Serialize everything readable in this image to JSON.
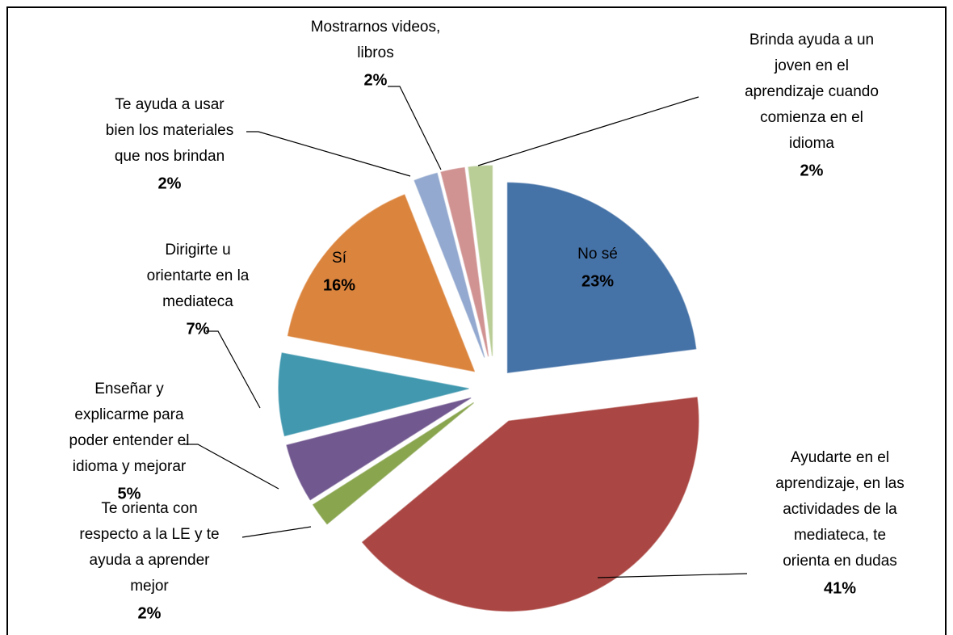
{
  "chart_data": {
    "type": "pie",
    "categories": [
      [
        "No sé"
      ],
      [
        "Ayudarte en el",
        "aprendizaje, en las",
        "actividades de la",
        "mediateca, te",
        "orienta en dudas"
      ],
      [
        "Te orienta con",
        "respecto a la LE y te",
        "ayuda a aprender",
        "mejor"
      ],
      [
        "Enseñar y",
        "explicarme para",
        "poder entender el",
        "idioma y mejorar"
      ],
      [
        "Dirigirte u",
        "orientarte en la",
        "mediateca"
      ],
      [
        "Sí"
      ],
      [
        "Te ayuda a usar",
        "bien los materiales",
        "que nos brindan"
      ],
      [
        "Mostrarnos  videos,",
        "libros"
      ],
      [
        "Brinda ayuda a un",
        "joven en el",
        "aprendizaje cuando",
        "comienza en el",
        "idioma"
      ]
    ],
    "values": [
      23,
      41,
      2,
      5,
      7,
      16,
      2,
      2,
      2
    ],
    "value_labels": [
      "23%",
      "41%",
      "2%",
      "5%",
      "7%",
      "16%",
      "2%",
      "2%",
      "2%"
    ],
    "colors": [
      "#4572a7",
      "#aa4643",
      "#89a54e",
      "#71588f",
      "#4198af",
      "#db843d",
      "#93a9cf",
      "#d19392",
      "#b9cd96"
    ]
  }
}
